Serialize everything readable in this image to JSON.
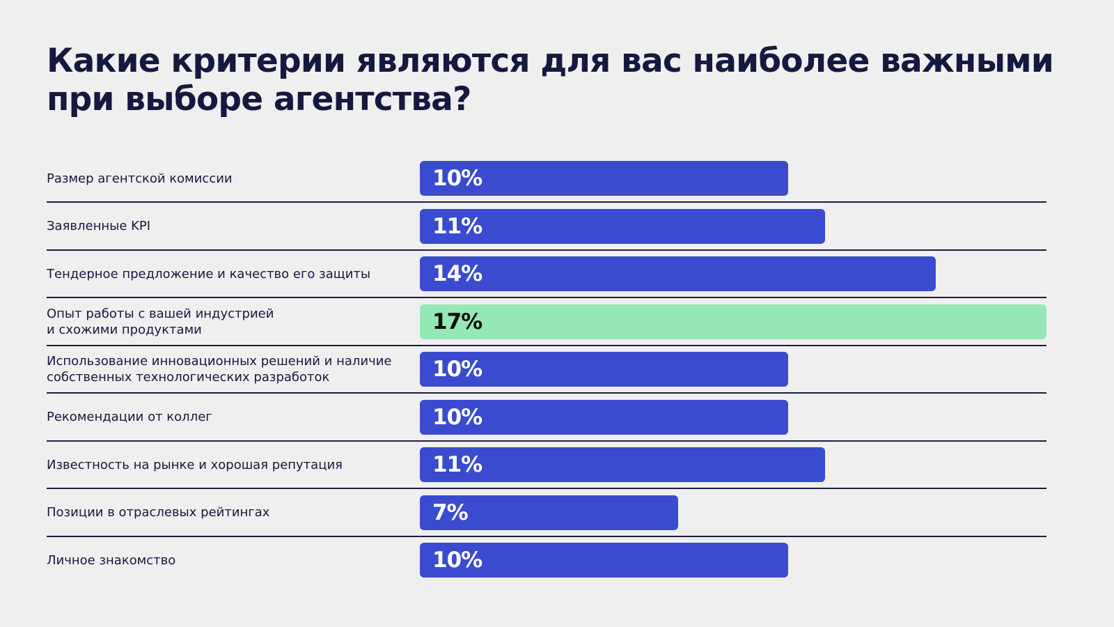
{
  "chart_data": {
    "type": "bar",
    "orientation": "horizontal",
    "title": "Какие критерии являются для вас наиболее важными при выборе агентства?",
    "categories": [
      "Размер агентской комиссии",
      "Заявленные KPI",
      "Тендерное предложение и качество его защиты",
      "Опыт работы с вашей индустрией\nи схожими продуктами",
      "Использование инновационных решений и наличие\nсобственных технологических разработок",
      "Рекомендации от коллег",
      "Известность на рынке и хорошая репутация",
      "Позиции в отраслевых рейтингах",
      "Личное знакомство"
    ],
    "values": [
      10,
      11,
      14,
      17,
      10,
      10,
      11,
      7,
      10
    ],
    "value_labels": [
      "10%",
      "11%",
      "14%",
      "17%",
      "10%",
      "10%",
      "11%",
      "7%",
      "10%"
    ],
    "highlight_index": 3,
    "xlim": [
      0,
      17
    ],
    "colors": {
      "bar": "#3a4bd0",
      "highlight": "#95e8b6",
      "divider": "#1c1d40"
    }
  }
}
